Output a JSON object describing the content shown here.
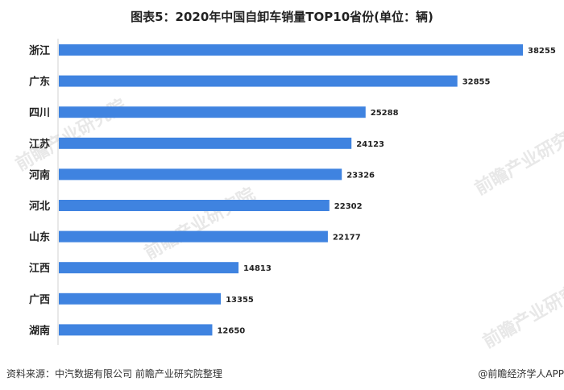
{
  "chart_data": {
    "type": "bar",
    "orientation": "horizontal",
    "title": "图表5：2020年中国自卸车销量TOP10省份(单位：辆)",
    "categories": [
      "浙江",
      "广东",
      "四川",
      "江苏",
      "河南",
      "河北",
      "山东",
      "江西",
      "广西",
      "湖南"
    ],
    "values": [
      38255,
      32855,
      25288,
      24123,
      23326,
      22302,
      22177,
      14813,
      13355,
      12650
    ],
    "xlabel": "",
    "ylabel": "",
    "xlim": [
      0,
      38255
    ],
    "grid": false,
    "bar_color": "#3f83e0"
  },
  "footer": {
    "source": "资料来源：中汽数据有限公司 前瞻产业研究院整理",
    "credit": "@前瞻经济学人APP"
  },
  "watermark": "前瞻产业研究院"
}
